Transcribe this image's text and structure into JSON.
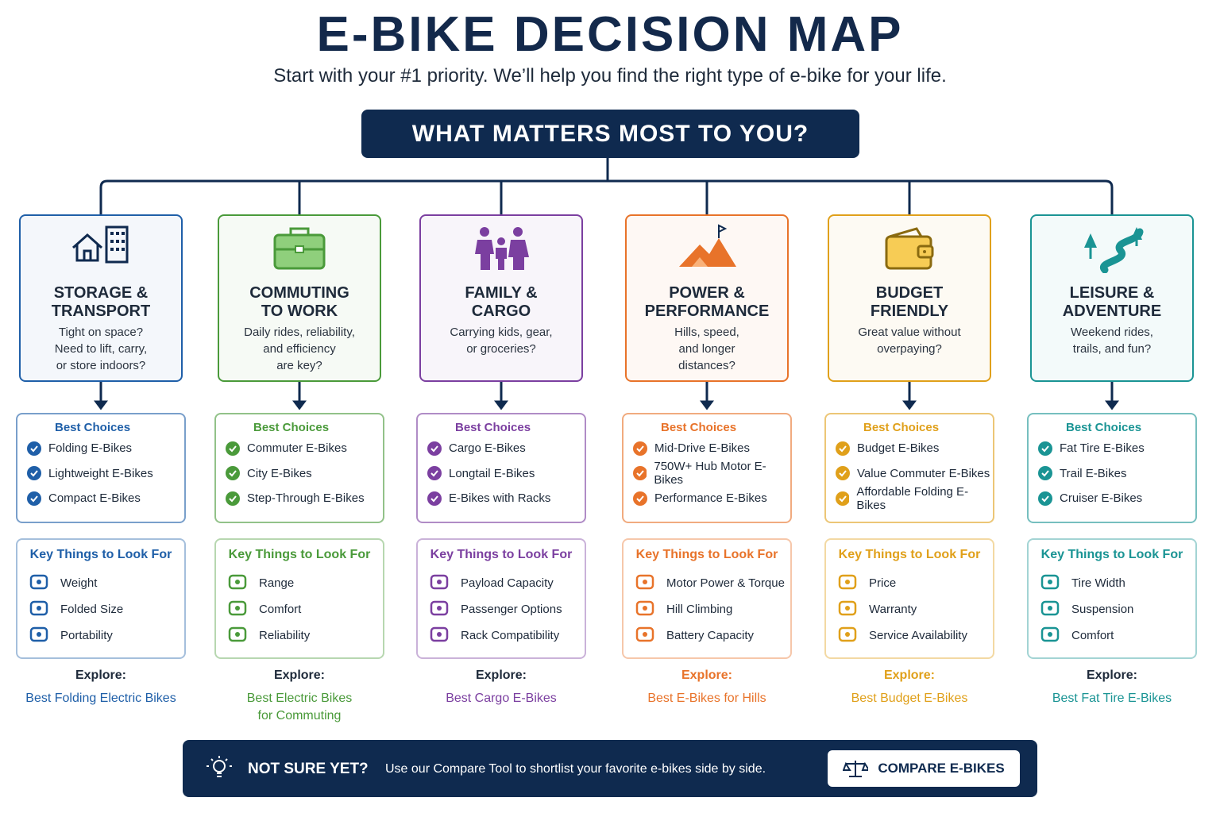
{
  "header": {
    "title": "E-BIKE DECISION MAP",
    "subtitle": "Start with your #1 priority. We’ll help you find the right type of e-bike for your life."
  },
  "root": {
    "label": "WHAT MATTERS MOST TO YOU?"
  },
  "columns": [
    {
      "color": "#1f5fa8",
      "title_lines": [
        "STORAGE &",
        "TRANSPORT"
      ],
      "question_lines": [
        "Tight on space?",
        "Need to lift, carry,",
        "or store indoors?"
      ],
      "best_choices": {
        "heading": "Best Choices",
        "items": [
          "Folding E-Bikes",
          "Lightweight E-Bikes",
          "Compact E-Bikes"
        ]
      },
      "key_things": {
        "heading": "Key Things to Look For",
        "items": [
          "Weight",
          "Folded Size",
          "Portability"
        ]
      },
      "explore": {
        "label": "Explore:",
        "link_lines": [
          "Best Folding Electric Bikes"
        ]
      }
    },
    {
      "color": "#4a9a3a",
      "title_lines": [
        "COMMUTING",
        "TO WORK"
      ],
      "question_lines": [
        "Daily rides, reliability,",
        "and efficiency",
        "are key?"
      ],
      "best_choices": {
        "heading": "Best Choices",
        "items": [
          "Commuter E-Bikes",
          "City E-Bikes",
          "Step-Through E-Bikes"
        ]
      },
      "key_things": {
        "heading": "Key Things to Look For",
        "items": [
          "Range",
          "Comfort",
          "Reliability"
        ]
      },
      "explore": {
        "label": "Explore:",
        "link_lines": [
          "Best Electric Bikes",
          "for Commuting"
        ]
      }
    },
    {
      "color": "#7b3fa0",
      "title_lines": [
        "FAMILY &",
        "CARGO"
      ],
      "question_lines": [
        "Carrying kids, gear,",
        "or groceries?"
      ],
      "best_choices": {
        "heading": "Best Choices",
        "items": [
          "Cargo E-Bikes",
          "Longtail E-Bikes",
          "E-Bikes with Racks"
        ]
      },
      "key_things": {
        "heading": "Key Things to Look For",
        "items": [
          "Payload Capacity",
          "Passenger Options",
          "Rack Compatibility"
        ]
      },
      "explore": {
        "label": "Explore:",
        "link_lines": [
          "Best Cargo E-Bikes"
        ]
      }
    },
    {
      "color": "#e8732a",
      "title_lines": [
        "POWER &",
        "PERFORMANCE"
      ],
      "question_lines": [
        "Hills, speed,",
        "and longer",
        "distances?"
      ],
      "best_choices": {
        "heading": "Best Choices",
        "items": [
          "Mid-Drive E-Bikes",
          "750W+ Hub Motor E-Bikes",
          "Performance E-Bikes"
        ]
      },
      "key_things": {
        "heading": "Key Things to Look For",
        "items": [
          "Motor Power & Torque",
          "Hill Climbing",
          "Battery Capacity"
        ]
      },
      "explore": {
        "label": "Explore:",
        "link_lines": [
          "Best E-Bikes for Hills"
        ]
      }
    },
    {
      "color": "#e0a01a",
      "title_lines": [
        "BUDGET",
        "FRIENDLY"
      ],
      "question_lines": [
        "Great value without",
        "overpaying?"
      ],
      "best_choices": {
        "heading": "Best Choices",
        "items": [
          "Budget E-Bikes",
          "Value Commuter E-Bikes",
          "Affordable Folding E-Bikes"
        ]
      },
      "key_things": {
        "heading": "Key Things to Look For",
        "items": [
          "Price",
          "Warranty",
          "Service Availability"
        ]
      },
      "explore": {
        "label": "Explore:",
        "link_lines": [
          "Best Budget E-Bikes"
        ]
      }
    },
    {
      "color": "#1a9494",
      "title_lines": [
        "LEISURE &",
        "ADVENTURE"
      ],
      "question_lines": [
        "Weekend rides,",
        "trails, and fun?"
      ],
      "best_choices": {
        "heading": "Best Choices",
        "items": [
          "Fat Tire E-Bikes",
          "Trail E-Bikes",
          "Cruiser E-Bikes"
        ]
      },
      "key_things": {
        "heading": "Key Things to Look For",
        "items": [
          "Tire Width",
          "Suspension",
          "Comfort"
        ]
      },
      "explore": {
        "label": "Explore:",
        "link_lines": [
          "Best Fat Tire E-Bikes"
        ]
      }
    }
  ],
  "footer": {
    "heading": "NOT SURE YET?",
    "text": "Use our Compare Tool to shortlist your favorite e-bikes side by side.",
    "button": "COMPARE E-BIKES"
  }
}
